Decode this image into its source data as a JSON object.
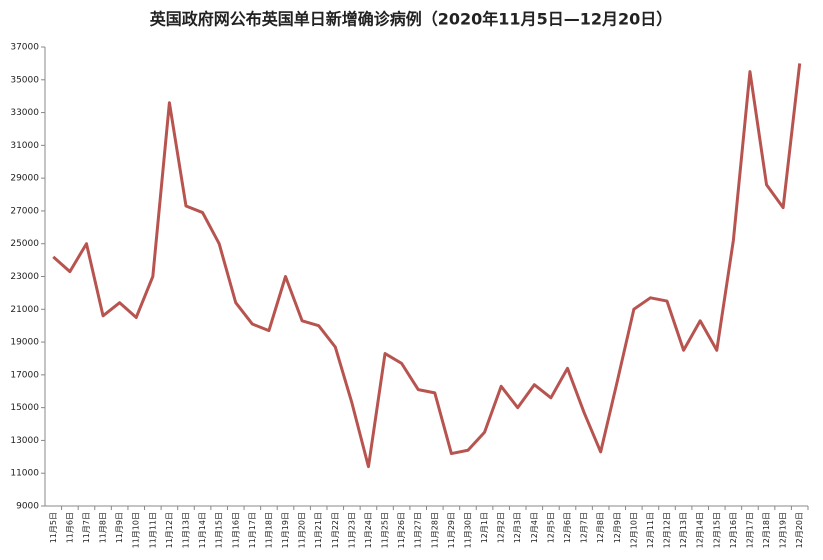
{
  "chart_data": {
    "type": "line",
    "title": "英国政府网公布英国单日新增确诊病例（2020年11月5日—12月20日）",
    "categories": [
      "11月5日",
      "11月6日",
      "11月7日",
      "11月8日",
      "11月9日",
      "11月10日",
      "11月11日",
      "11月12日",
      "11月13日",
      "11月14日",
      "11月15日",
      "11月16日",
      "11月17日",
      "11月18日",
      "11月19日",
      "11月20日",
      "11月21日",
      "11月22日",
      "11月23日",
      "11月24日",
      "11月25日",
      "11月26日",
      "11月27日",
      "11月28日",
      "11月29日",
      "11月30日",
      "12月1日",
      "12月2日",
      "12月3日",
      "12月4日",
      "12月5日",
      "12月6日",
      "12月7日",
      "12月8日",
      "12月9日",
      "12月10日",
      "12月11日",
      "12月12日",
      "12月13日",
      "12月14日",
      "12月15日",
      "12月16日",
      "12月17日",
      "12月18日",
      "12月19日",
      "12月20日"
    ],
    "values": [
      24200,
      23300,
      25000,
      20600,
      21400,
      20500,
      23000,
      33600,
      27300,
      26900,
      25000,
      21400,
      20100,
      19700,
      23000,
      20300,
      20000,
      18700,
      15300,
      11400,
      18300,
      17700,
      16100,
      15900,
      12200,
      12400,
      13500,
      16300,
      15000,
      16400,
      15600,
      17400,
      14700,
      12300,
      16600,
      21000,
      21700,
      21500,
      18500,
      20300,
      18500,
      25200,
      35500,
      28600,
      27200,
      36000
    ],
    "color": "#b85450",
    "ylim": [
      9000,
      37000
    ],
    "yticks": [
      9000,
      11000,
      13000,
      15000,
      17000,
      19000,
      21000,
      23000,
      25000,
      27000,
      29000,
      31000,
      33000,
      35000,
      37000
    ],
    "grid": false
  }
}
